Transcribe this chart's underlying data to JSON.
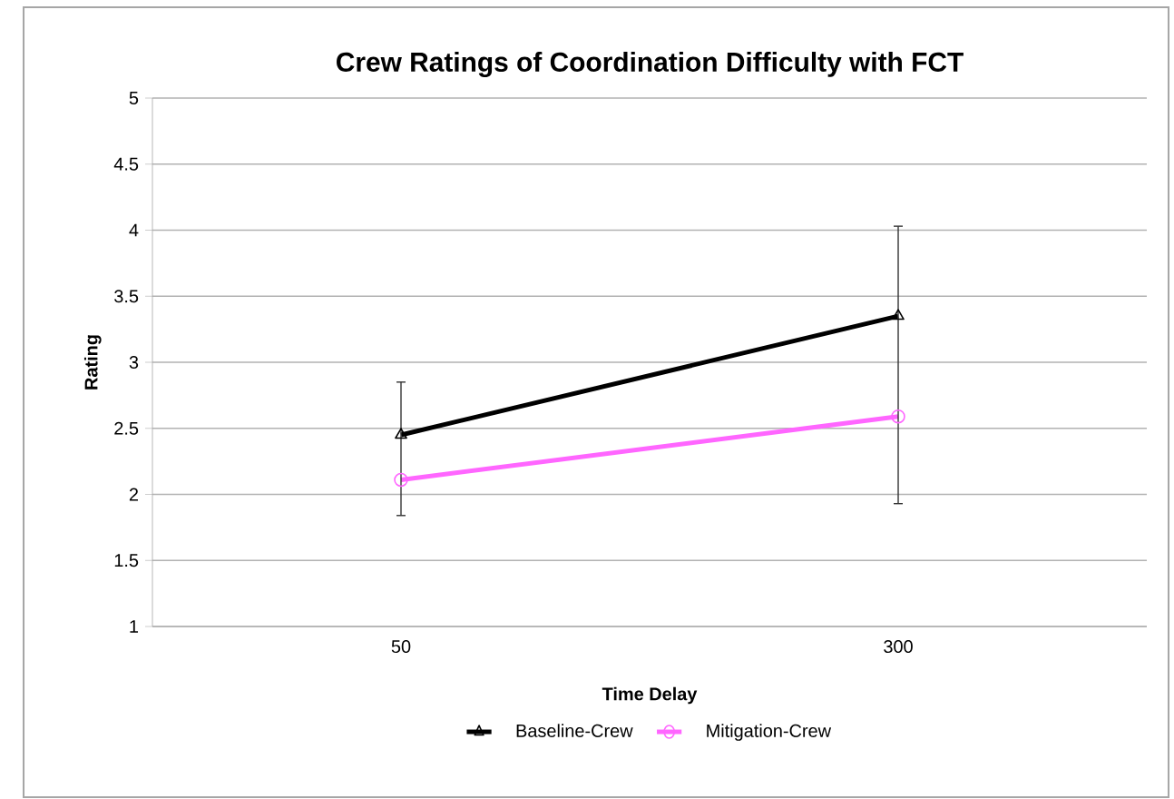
{
  "chart_data": {
    "type": "line",
    "title": "Crew Ratings of Coordination Difficulty with FCT",
    "xlabel": "Time Delay",
    "ylabel": "Rating",
    "categories": [
      "50",
      "300"
    ],
    "series": [
      {
        "name": "Baseline-Crew",
        "color": "#000000",
        "values": [
          2.45,
          3.35
        ],
        "marker": "triangle",
        "errors": [
          [
            1.84,
            2.85
          ],
          [
            1.93,
            4.03
          ]
        ]
      },
      {
        "name": "Mitigation-Crew",
        "color": "#ff66ff",
        "values": [
          2.11,
          2.59
        ],
        "marker": "circle"
      }
    ],
    "ylim": [
      1,
      5
    ],
    "yticks": [
      1,
      1.5,
      2,
      2.5,
      3,
      3.5,
      4,
      4.5,
      5
    ],
    "grid": "y",
    "legend": "bottom"
  }
}
